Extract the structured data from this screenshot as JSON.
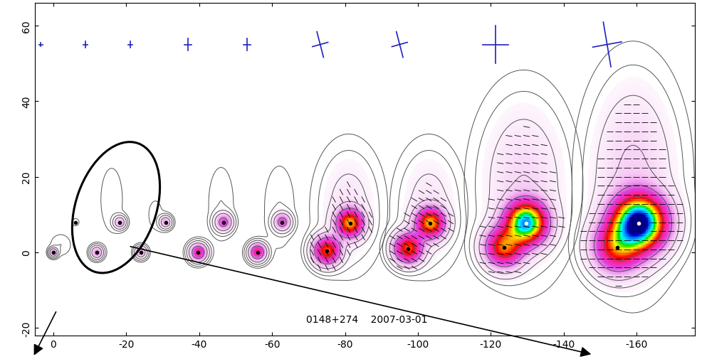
{
  "chart_data": {
    "type": "image",
    "source": "0148+274",
    "epoch": "2007-03-01",
    "xlim": [
      5,
      -176
    ],
    "ylim": [
      -22,
      66
    ],
    "xticks": [
      0,
      -20,
      -40,
      -60,
      -80,
      -100,
      -120,
      -140,
      -160
    ],
    "yticks": [
      -20,
      0,
      20,
      40,
      60
    ],
    "color_range": [
      0,
      1
    ],
    "contour_levels": [
      0.004,
      0.01,
      0.025,
      0.06,
      0.15,
      0.35
    ],
    "text_position": [
      -86,
      -17.6
    ],
    "panels": [
      {
        "core": {
          "x": 0,
          "y": 0,
          "flux": 0.15,
          "size": 0.7
        },
        "jet": {
          "x": -6.1,
          "y": 8,
          "flux": 0.01,
          "size": 0.7
        },
        "halo": {
          "x": -2,
          "y": 2,
          "size_x": 2,
          "size_y": 2,
          "flux": 0.01
        },
        "beam": {
          "x": 3.4,
          "y": 55,
          "major": 0.5,
          "minor": 0.4,
          "angle": 0
        },
        "evpa": null
      },
      {
        "core": {
          "x": -11.9,
          "y": 0,
          "flux": 0.15,
          "size": 1.0
        },
        "jet": {
          "x": -18.2,
          "y": 8,
          "flux": 0.12,
          "size": 1.0
        },
        "halo": {
          "x": -16,
          "y": 14,
          "size_x": 2.5,
          "size_y": 7,
          "flux": 0.008
        },
        "beam": {
          "x": -8.8,
          "y": 55,
          "major": 0.8,
          "minor": 0.6,
          "angle": 0
        },
        "evpa": null
      },
      {
        "core": {
          "x": -24,
          "y": 0,
          "flux": 0.12,
          "size": 1.0
        },
        "jet": {
          "x": -30.8,
          "y": 8,
          "flux": 0.12,
          "size": 1.0
        },
        "halo": {
          "x": -28,
          "y": 10,
          "size_x": 2,
          "size_y": 4,
          "flux": 0.006
        },
        "beam": {
          "x": -21.1,
          "y": 55,
          "major": 0.8,
          "minor": 0.6,
          "angle": 0
        },
        "evpa": null
      },
      {
        "core": {
          "x": -39.7,
          "y": 0,
          "flux": 0.3,
          "size": 1.4
        },
        "jet": {
          "x": -46.6,
          "y": 8,
          "flux": 0.2,
          "size": 1.4
        },
        "halo": {
          "x": -46,
          "y": 13,
          "size_x": 2.5,
          "size_y": 7,
          "flux": 0.01
        },
        "beam": {
          "x": -37,
          "y": 55,
          "major": 1.6,
          "minor": 1.0,
          "angle": 0
        },
        "evpa": null
      },
      {
        "core": {
          "x": -56,
          "y": 0,
          "flux": 0.32,
          "size": 1.4
        },
        "jet": {
          "x": -62.8,
          "y": 8,
          "flux": 0.2,
          "size": 1.4
        },
        "halo": {
          "x": -62,
          "y": 12,
          "size_x": 3,
          "size_y": 8,
          "flux": 0.01
        },
        "beam": {
          "x": -53.2,
          "y": 55,
          "major": 1.6,
          "minor": 1.0,
          "angle": 0
        },
        "evpa": null
      },
      {
        "core": {
          "x": -75.1,
          "y": 0.4,
          "flux": 0.45,
          "size": 2.3
        },
        "jet": {
          "x": -81.4,
          "y": 7.7,
          "flux": 0.5,
          "size": 2.3
        },
        "halo": {
          "x": -81,
          "y": 12,
          "size_x": 5,
          "size_y": 9,
          "flux": 0.04
        },
        "beam": {
          "x": -73.2,
          "y": 55,
          "major": 3.5,
          "minor": 2.2,
          "angle": 15
        },
        "evpa": 60
      },
      {
        "core": {
          "x": -97.3,
          "y": 1,
          "flux": 0.45,
          "size": 2.5
        },
        "jet": {
          "x": -103.4,
          "y": 7.7,
          "flux": 0.5,
          "size": 2.5
        },
        "halo": {
          "x": -103,
          "y": 12,
          "size_x": 5,
          "size_y": 9,
          "flux": 0.04
        },
        "beam": {
          "x": -95,
          "y": 55,
          "major": 3.5,
          "minor": 2.2,
          "angle": 15
        },
        "evpa": 30
      },
      {
        "core": {
          "x": -123.6,
          "y": 1.3,
          "flux": 0.45,
          "size": 3.3
        },
        "jet": {
          "x": -129.7,
          "y": 7.7,
          "flux": 0.8,
          "size": 3.5
        },
        "halo": {
          "x": -129,
          "y": 18,
          "size_x": 7,
          "size_y": 13,
          "flux": 0.06
        },
        "beam": {
          "x": -121.3,
          "y": 55,
          "major": 5,
          "minor": 3.5,
          "angle": 0
        },
        "evpa": 10
      },
      {
        "core": {
          "x": -154.6,
          "y": 1.3,
          "flux": 0.4,
          "size": 4.2
        },
        "jet": {
          "x": -160.6,
          "y": 7.7,
          "flux": 1.0,
          "size": 4.5
        },
        "halo": {
          "x": -159,
          "y": 20,
          "size_x": 7,
          "size_y": 15,
          "flux": 0.07
        },
        "beam": {
          "x": -151.9,
          "y": 55,
          "major": 6,
          "minor": 4,
          "angle": 10
        },
        "evpa": 0
      }
    ]
  }
}
